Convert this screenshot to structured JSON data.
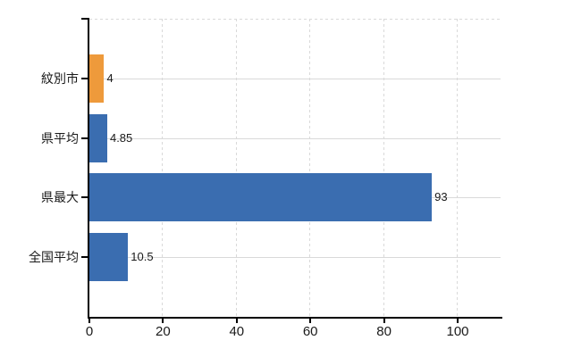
{
  "chart_data": {
    "type": "bar",
    "orientation": "horizontal",
    "title": "",
    "xlabel": "",
    "ylabel": "",
    "categories": [
      "紋別市",
      "県平均",
      "県最大",
      "全国平均"
    ],
    "values": [
      4,
      4.85,
      93,
      10.5
    ],
    "value_labels": [
      "4",
      "4.85",
      "93",
      "10.5"
    ],
    "bar_colors": [
      "#EE9A3B",
      "#3A6DB0",
      "#3A6DB0",
      "#3A6DB0"
    ],
    "x_ticks": [
      0,
      20,
      40,
      60,
      80,
      100
    ],
    "x_tick_labels": [
      "0",
      "20",
      "40",
      "60",
      "80",
      "100"
    ],
    "xlim": [
      0,
      111.6
    ],
    "grid": {
      "vertical_style": "dashed",
      "horizontal_style": "solid"
    },
    "legend_position": "none",
    "colors": {
      "highlight_bar": "#EE9A3B",
      "default_bar": "#3A6DB0",
      "gridline": "#D9D9D9",
      "axis": "#000000",
      "text": "#1A1A1A",
      "background": "#FFFFFF"
    }
  }
}
